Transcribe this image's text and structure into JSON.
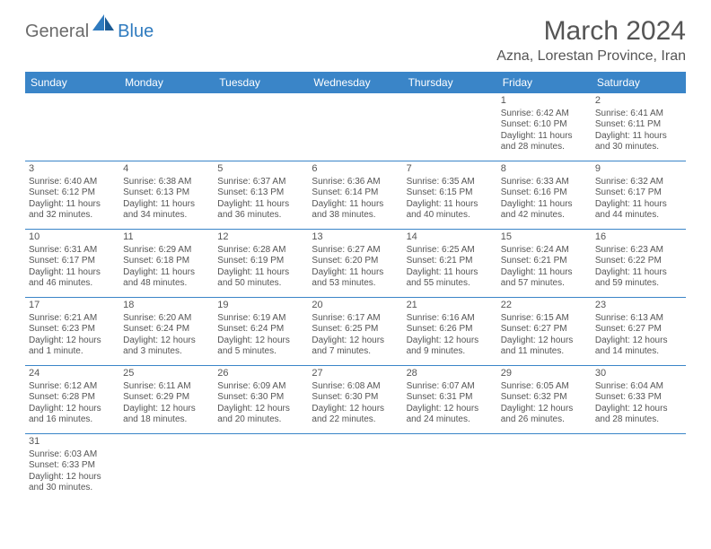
{
  "brand": {
    "part1": "General",
    "part2": "Blue"
  },
  "title": "March 2024",
  "location": "Azna, Lorestan Province, Iran",
  "colors": {
    "header_bg": "#3a85c8",
    "header_text": "#ffffff",
    "body_text": "#555555",
    "logo_gray": "#6b6b6b",
    "logo_blue": "#2f7bbf",
    "row_divider": "#3a85c8",
    "background": "#ffffff"
  },
  "typography": {
    "title_fontsize": 30,
    "location_fontsize": 16,
    "dayheader_fontsize": 12,
    "daynum_fontsize": 11,
    "cell_fontsize": 10,
    "font_family": "Arial"
  },
  "day_headers": [
    "Sunday",
    "Monday",
    "Tuesday",
    "Wednesday",
    "Thursday",
    "Friday",
    "Saturday"
  ],
  "weeks": [
    [
      {
        "day": "",
        "sunrise": "",
        "sunset": "",
        "daylight": ""
      },
      {
        "day": "",
        "sunrise": "",
        "sunset": "",
        "daylight": ""
      },
      {
        "day": "",
        "sunrise": "",
        "sunset": "",
        "daylight": ""
      },
      {
        "day": "",
        "sunrise": "",
        "sunset": "",
        "daylight": ""
      },
      {
        "day": "",
        "sunrise": "",
        "sunset": "",
        "daylight": ""
      },
      {
        "day": "1",
        "sunrise": "Sunrise: 6:42 AM",
        "sunset": "Sunset: 6:10 PM",
        "daylight": "Daylight: 11 hours and 28 minutes."
      },
      {
        "day": "2",
        "sunrise": "Sunrise: 6:41 AM",
        "sunset": "Sunset: 6:11 PM",
        "daylight": "Daylight: 11 hours and 30 minutes."
      }
    ],
    [
      {
        "day": "3",
        "sunrise": "Sunrise: 6:40 AM",
        "sunset": "Sunset: 6:12 PM",
        "daylight": "Daylight: 11 hours and 32 minutes."
      },
      {
        "day": "4",
        "sunrise": "Sunrise: 6:38 AM",
        "sunset": "Sunset: 6:13 PM",
        "daylight": "Daylight: 11 hours and 34 minutes."
      },
      {
        "day": "5",
        "sunrise": "Sunrise: 6:37 AM",
        "sunset": "Sunset: 6:13 PM",
        "daylight": "Daylight: 11 hours and 36 minutes."
      },
      {
        "day": "6",
        "sunrise": "Sunrise: 6:36 AM",
        "sunset": "Sunset: 6:14 PM",
        "daylight": "Daylight: 11 hours and 38 minutes."
      },
      {
        "day": "7",
        "sunrise": "Sunrise: 6:35 AM",
        "sunset": "Sunset: 6:15 PM",
        "daylight": "Daylight: 11 hours and 40 minutes."
      },
      {
        "day": "8",
        "sunrise": "Sunrise: 6:33 AM",
        "sunset": "Sunset: 6:16 PM",
        "daylight": "Daylight: 11 hours and 42 minutes."
      },
      {
        "day": "9",
        "sunrise": "Sunrise: 6:32 AM",
        "sunset": "Sunset: 6:17 PM",
        "daylight": "Daylight: 11 hours and 44 minutes."
      }
    ],
    [
      {
        "day": "10",
        "sunrise": "Sunrise: 6:31 AM",
        "sunset": "Sunset: 6:17 PM",
        "daylight": "Daylight: 11 hours and 46 minutes."
      },
      {
        "day": "11",
        "sunrise": "Sunrise: 6:29 AM",
        "sunset": "Sunset: 6:18 PM",
        "daylight": "Daylight: 11 hours and 48 minutes."
      },
      {
        "day": "12",
        "sunrise": "Sunrise: 6:28 AM",
        "sunset": "Sunset: 6:19 PM",
        "daylight": "Daylight: 11 hours and 50 minutes."
      },
      {
        "day": "13",
        "sunrise": "Sunrise: 6:27 AM",
        "sunset": "Sunset: 6:20 PM",
        "daylight": "Daylight: 11 hours and 53 minutes."
      },
      {
        "day": "14",
        "sunrise": "Sunrise: 6:25 AM",
        "sunset": "Sunset: 6:21 PM",
        "daylight": "Daylight: 11 hours and 55 minutes."
      },
      {
        "day": "15",
        "sunrise": "Sunrise: 6:24 AM",
        "sunset": "Sunset: 6:21 PM",
        "daylight": "Daylight: 11 hours and 57 minutes."
      },
      {
        "day": "16",
        "sunrise": "Sunrise: 6:23 AM",
        "sunset": "Sunset: 6:22 PM",
        "daylight": "Daylight: 11 hours and 59 minutes."
      }
    ],
    [
      {
        "day": "17",
        "sunrise": "Sunrise: 6:21 AM",
        "sunset": "Sunset: 6:23 PM",
        "daylight": "Daylight: 12 hours and 1 minute."
      },
      {
        "day": "18",
        "sunrise": "Sunrise: 6:20 AM",
        "sunset": "Sunset: 6:24 PM",
        "daylight": "Daylight: 12 hours and 3 minutes."
      },
      {
        "day": "19",
        "sunrise": "Sunrise: 6:19 AM",
        "sunset": "Sunset: 6:24 PM",
        "daylight": "Daylight: 12 hours and 5 minutes."
      },
      {
        "day": "20",
        "sunrise": "Sunrise: 6:17 AM",
        "sunset": "Sunset: 6:25 PM",
        "daylight": "Daylight: 12 hours and 7 minutes."
      },
      {
        "day": "21",
        "sunrise": "Sunrise: 6:16 AM",
        "sunset": "Sunset: 6:26 PM",
        "daylight": "Daylight: 12 hours and 9 minutes."
      },
      {
        "day": "22",
        "sunrise": "Sunrise: 6:15 AM",
        "sunset": "Sunset: 6:27 PM",
        "daylight": "Daylight: 12 hours and 11 minutes."
      },
      {
        "day": "23",
        "sunrise": "Sunrise: 6:13 AM",
        "sunset": "Sunset: 6:27 PM",
        "daylight": "Daylight: 12 hours and 14 minutes."
      }
    ],
    [
      {
        "day": "24",
        "sunrise": "Sunrise: 6:12 AM",
        "sunset": "Sunset: 6:28 PM",
        "daylight": "Daylight: 12 hours and 16 minutes."
      },
      {
        "day": "25",
        "sunrise": "Sunrise: 6:11 AM",
        "sunset": "Sunset: 6:29 PM",
        "daylight": "Daylight: 12 hours and 18 minutes."
      },
      {
        "day": "26",
        "sunrise": "Sunrise: 6:09 AM",
        "sunset": "Sunset: 6:30 PM",
        "daylight": "Daylight: 12 hours and 20 minutes."
      },
      {
        "day": "27",
        "sunrise": "Sunrise: 6:08 AM",
        "sunset": "Sunset: 6:30 PM",
        "daylight": "Daylight: 12 hours and 22 minutes."
      },
      {
        "day": "28",
        "sunrise": "Sunrise: 6:07 AM",
        "sunset": "Sunset: 6:31 PM",
        "daylight": "Daylight: 12 hours and 24 minutes."
      },
      {
        "day": "29",
        "sunrise": "Sunrise: 6:05 AM",
        "sunset": "Sunset: 6:32 PM",
        "daylight": "Daylight: 12 hours and 26 minutes."
      },
      {
        "day": "30",
        "sunrise": "Sunrise: 6:04 AM",
        "sunset": "Sunset: 6:33 PM",
        "daylight": "Daylight: 12 hours and 28 minutes."
      }
    ],
    [
      {
        "day": "31",
        "sunrise": "Sunrise: 6:03 AM",
        "sunset": "Sunset: 6:33 PM",
        "daylight": "Daylight: 12 hours and 30 minutes."
      },
      {
        "day": "",
        "sunrise": "",
        "sunset": "",
        "daylight": ""
      },
      {
        "day": "",
        "sunrise": "",
        "sunset": "",
        "daylight": ""
      },
      {
        "day": "",
        "sunrise": "",
        "sunset": "",
        "daylight": ""
      },
      {
        "day": "",
        "sunrise": "",
        "sunset": "",
        "daylight": ""
      },
      {
        "day": "",
        "sunrise": "",
        "sunset": "",
        "daylight": ""
      },
      {
        "day": "",
        "sunrise": "",
        "sunset": "",
        "daylight": ""
      }
    ]
  ]
}
